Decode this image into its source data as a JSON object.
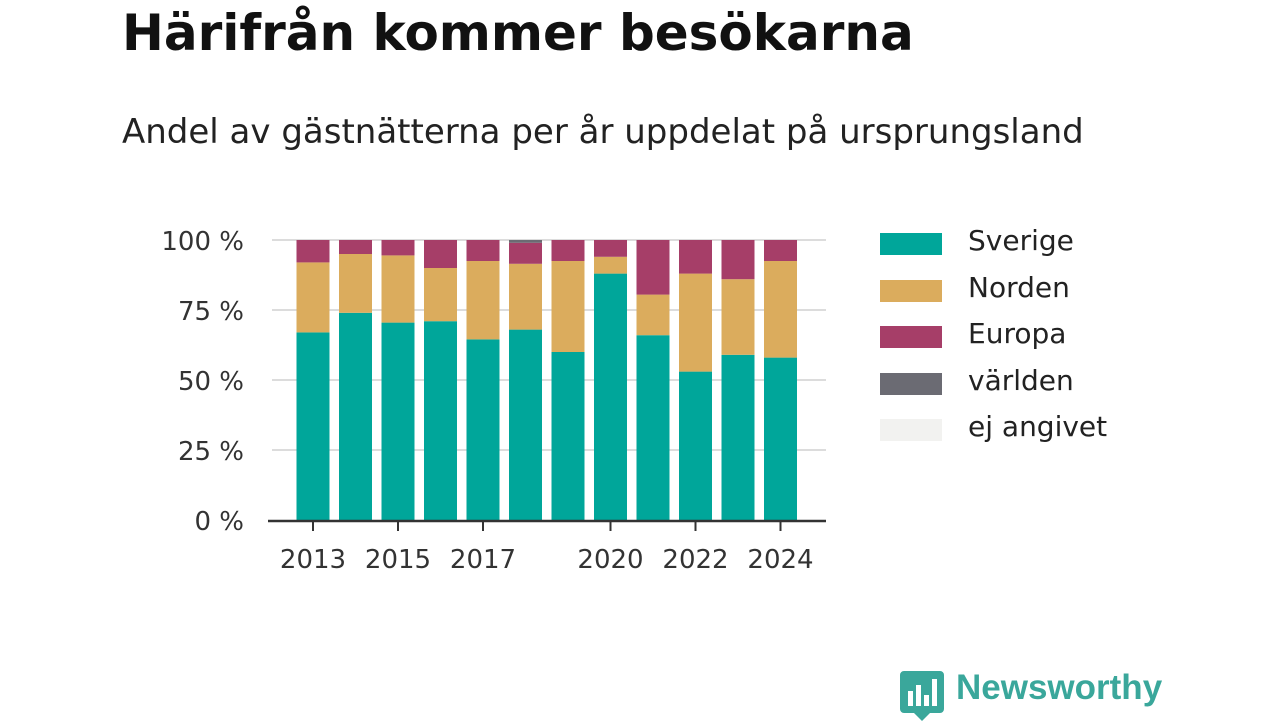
{
  "title": "Härifrån kommer besökarna",
  "subtitle": "Andel av gästnätterna per år uppdelat på ursprungsland",
  "brand": {
    "name": "Newsworthy",
    "color": "#3aa79b",
    "logo_icon": "newsworthy-logo-icon"
  },
  "chart_data": {
    "type": "bar",
    "stacked": true,
    "categories": [
      "2013",
      "2014",
      "2015",
      "2016",
      "2017",
      "2018",
      "2019",
      "2020",
      "2021",
      "2022",
      "2023",
      "2024"
    ],
    "x_tick_labels": [
      "2013",
      "2015",
      "2017",
      "2020",
      "2022",
      "2024"
    ],
    "y_tick_labels": [
      "0 %",
      "25 %",
      "50 %",
      "75 %",
      "100 %"
    ],
    "y_ticks": [
      0,
      25,
      50,
      75,
      100
    ],
    "ylim": [
      0,
      100
    ],
    "grid": true,
    "legend_position": "right",
    "series": [
      {
        "name": "Sverige",
        "color": "#00a69a",
        "values": [
          67,
          74,
          70.5,
          71,
          64.5,
          68,
          60,
          88,
          66,
          53,
          59,
          58
        ]
      },
      {
        "name": "Norden",
        "color": "#dbac5d",
        "values": [
          25,
          21,
          24,
          19,
          28,
          23.5,
          32.5,
          6,
          14.5,
          35,
          27,
          34.5
        ]
      },
      {
        "name": "Europa",
        "color": "#a63e68",
        "values": [
          8,
          5,
          5.5,
          10,
          7.5,
          7.5,
          7.5,
          6,
          19.5,
          12,
          14,
          7.5
        ]
      },
      {
        "name": "världen",
        "color": "#6b6b73",
        "values": [
          0,
          0,
          0,
          0,
          0,
          1,
          0,
          0,
          0,
          0,
          0,
          0
        ]
      },
      {
        "name": "ej angivet",
        "color": "#f2f2f0",
        "values": [
          0,
          0,
          0,
          0,
          0,
          0,
          0,
          0,
          0,
          0,
          0,
          0
        ]
      }
    ]
  }
}
